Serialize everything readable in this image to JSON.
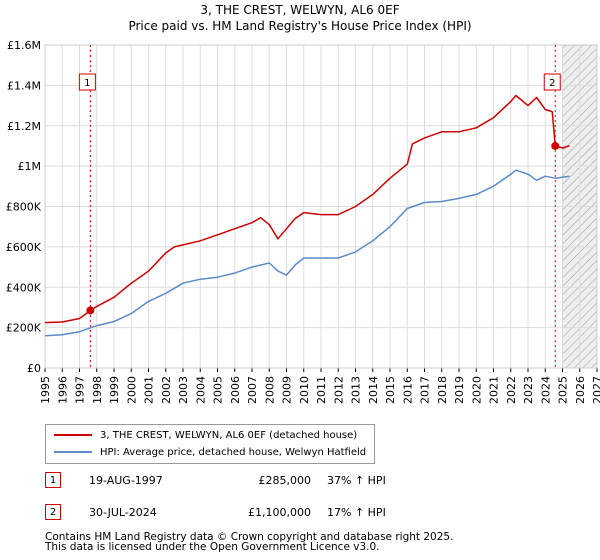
{
  "title": "3, THE CREST, WELWYN, AL6 0EF",
  "subtitle": "Price paid vs. HM Land Registry's House Price Index (HPI)",
  "colors": {
    "property": "#cc0000",
    "hpi": "#5b8ac7",
    "grid": "#dddddd",
    "marker": "#cc0000"
  },
  "legend": {
    "property_label": "3, THE CREST, WELWYN, AL6 0EF (detached house)",
    "hpi_label": "HPI: Average price, detached house, Welwyn Hatfield"
  },
  "sales": [
    {
      "num": "1",
      "date": "19-AUG-1997",
      "price": "£285,000",
      "hpi_change": "37% ↑ HPI"
    },
    {
      "num": "2",
      "date": "30-JUL-2024",
      "price": "£1,100,000",
      "hpi_change": "17% ↑ HPI"
    }
  ],
  "footer": {
    "line1": "Contains HM Land Registry data © Crown copyright and database right 2025.",
    "line2": "This data is licensed under the Open Government Licence v3.0."
  },
  "chart_data": {
    "type": "line",
    "title": "3, THE CREST, WELWYN, AL6 0EF",
    "subtitle": "Price paid vs. HM Land Registry's House Price Index (HPI)",
    "xlabel": "",
    "ylabel": "",
    "xlim": [
      1995,
      2027
    ],
    "ylim": [
      0,
      1600000
    ],
    "y_ticks": [
      0,
      200000,
      400000,
      600000,
      800000,
      1000000,
      1200000,
      1400000,
      1600000
    ],
    "y_tick_labels": [
      "£0",
      "£200K",
      "£400K",
      "£600K",
      "£800K",
      "£1M",
      "£1.2M",
      "£1.4M",
      "£1.6M"
    ],
    "x_ticks": [
      1995,
      1996,
      1997,
      1998,
      1999,
      2000,
      2001,
      2002,
      2003,
      2004,
      2005,
      2006,
      2007,
      2008,
      2009,
      2010,
      2011,
      2012,
      2013,
      2014,
      2015,
      2016,
      2017,
      2018,
      2019,
      2020,
      2021,
      2022,
      2023,
      2024,
      2025,
      2026,
      2027
    ],
    "x_tick_labels": [
      "1995",
      "1996",
      "1997",
      "1998",
      "1999",
      "2000",
      "2001",
      "2002",
      "2003",
      "2004",
      "2005",
      "2006",
      "2007",
      "2008",
      "2009",
      "2010",
      "2011",
      "2012",
      "2013",
      "2014",
      "2015",
      "2016",
      "2017",
      "2018",
      "2019",
      "2020",
      "2021",
      "2022",
      "2023",
      "2024",
      "2025",
      "2026",
      "2027"
    ],
    "grid": true,
    "hatched_from": 2025.0,
    "series": [
      {
        "name": "3, THE CREST, WELWYN, AL6 0EF (detached house)",
        "x": [
          1995,
          1996,
          1997,
          1997.63,
          1998,
          1999,
          2000,
          2001,
          2002,
          2002.5,
          2003,
          2004,
          2005,
          2006,
          2007,
          2007.5,
          2008,
          2008.5,
          2009,
          2009.5,
          2010,
          2011,
          2012,
          2013,
          2014,
          2015,
          2016,
          2016.3,
          2017,
          2018,
          2019,
          2020,
          2021,
          2022,
          2022.3,
          2023,
          2023.5,
          2024,
          2024.4,
          2024.58,
          2025,
          2025.4
        ],
        "values": [
          225000,
          228000,
          245000,
          285000,
          305000,
          350000,
          420000,
          480000,
          570000,
          600000,
          610000,
          630000,
          660000,
          690000,
          720000,
          745000,
          710000,
          640000,
          690000,
          740000,
          770000,
          760000,
          760000,
          800000,
          860000,
          940000,
          1010000,
          1110000,
          1140000,
          1170000,
          1170000,
          1190000,
          1240000,
          1320000,
          1350000,
          1300000,
          1340000,
          1280000,
          1270000,
          1100000,
          1090000,
          1100000
        ]
      },
      {
        "name": "HPI: Average price, detached house, Welwyn Hatfield",
        "x": [
          1995,
          1996,
          1997,
          1998,
          1999,
          2000,
          2001,
          2002,
          2003,
          2004,
          2005,
          2006,
          2007,
          2008,
          2008.5,
          2009,
          2009.5,
          2010,
          2011,
          2012,
          2013,
          2014,
          2015,
          2016,
          2017,
          2018,
          2019,
          2020,
          2021,
          2022,
          2022.3,
          2023,
          2023.5,
          2024,
          2024.58,
          2025,
          2025.4
        ],
        "values": [
          160000,
          165000,
          180000,
          210000,
          230000,
          270000,
          330000,
          370000,
          420000,
          440000,
          450000,
          470000,
          500000,
          520000,
          480000,
          460000,
          510000,
          545000,
          545000,
          545000,
          575000,
          630000,
          700000,
          790000,
          820000,
          825000,
          840000,
          860000,
          900000,
          960000,
          980000,
          960000,
          930000,
          950000,
          940000,
          945000,
          950000
        ]
      }
    ],
    "sale_markers": [
      {
        "label": "1",
        "x": 1997.63,
        "y": 285000
      },
      {
        "label": "2",
        "x": 2024.58,
        "y": 1100000
      }
    ]
  }
}
